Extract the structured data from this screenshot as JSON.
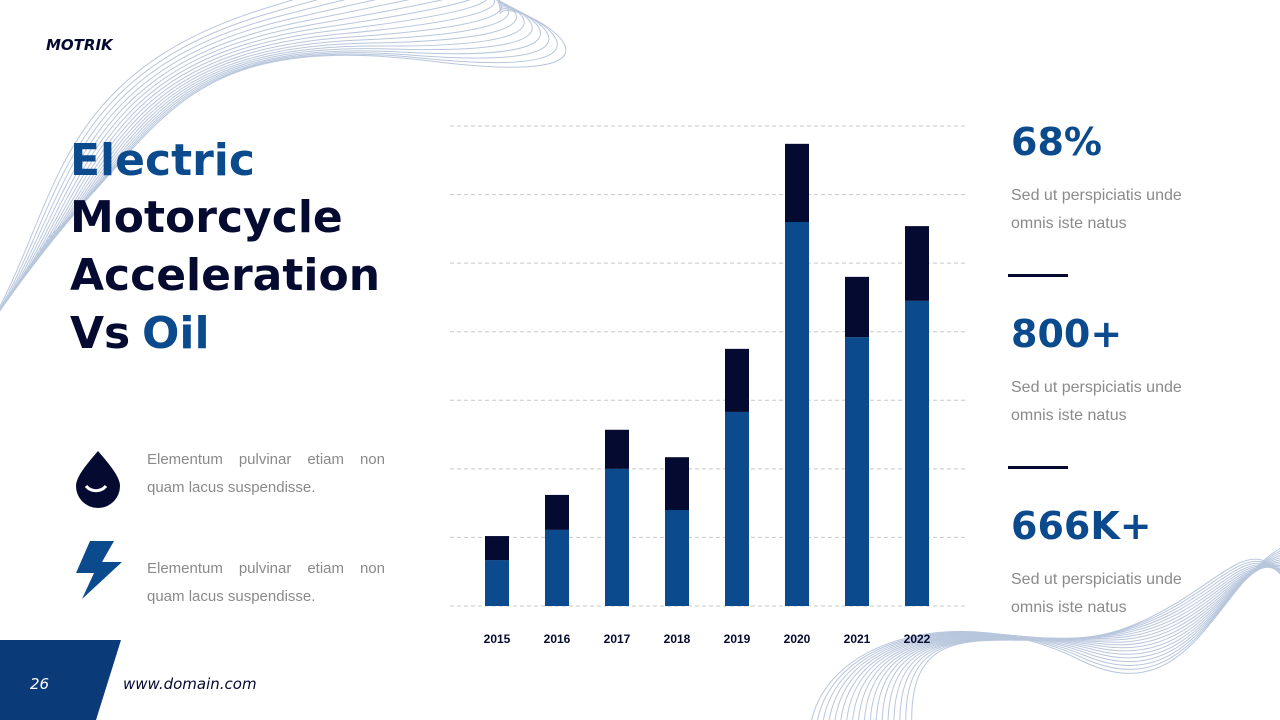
{
  "logo": "MOTRIK",
  "title": {
    "line1": "Electric",
    "line2": "Motorcycle",
    "line3": "Acceleration",
    "line4a": "Vs",
    "line4b": "Oil"
  },
  "features": [
    {
      "text": "Elementum pulvinar etiam non quam lacus suspendisse."
    },
    {
      "text": "Elementum pulvinar etiam non quam lacus suspendisse."
    }
  ],
  "stats": [
    {
      "value": "68%",
      "text": "Sed ut perspiciatis unde omnis iste natus"
    },
    {
      "value": "800+",
      "text": "Sed ut perspiciatis unde omnis iste natus"
    },
    {
      "value": "666K+",
      "text": "Sed ut perspiciatis unde omnis iste natus"
    }
  ],
  "footer": {
    "page": "26",
    "url": "www.domain.com"
  },
  "chart_data": {
    "type": "stacked_bar",
    "categories": [
      "2015",
      "2016",
      "2017",
      "2018",
      "2019",
      "2020",
      "2021",
      "2022"
    ],
    "series": [
      {
        "color": "#0b4a8c",
        "values": [
          0.67,
          1.11,
          2.0,
          1.4,
          2.83,
          5.6,
          3.92,
          4.45
        ]
      },
      {
        "color": "#050a30",
        "values": [
          0.35,
          0.51,
          0.57,
          0.77,
          0.92,
          1.14,
          0.88,
          1.09
        ]
      }
    ],
    "ylim": [
      0,
      7
    ],
    "yticks": [
      0,
      1,
      2,
      3,
      4,
      5,
      6,
      7
    ],
    "grid": true
  }
}
